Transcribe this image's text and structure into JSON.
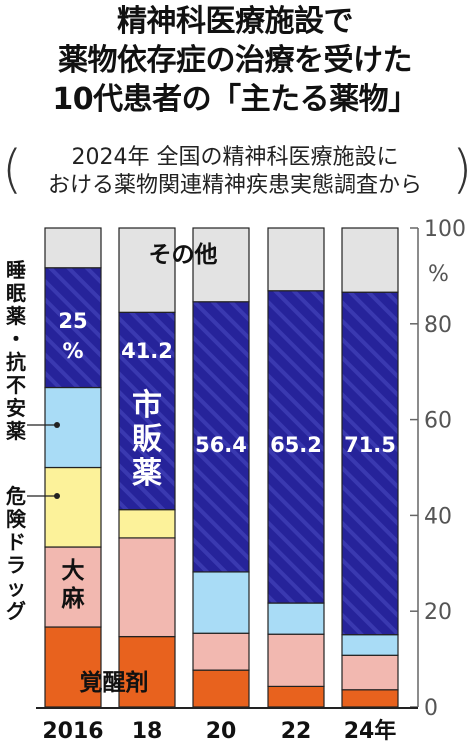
{
  "title": {
    "line1": "精神科医療施設で",
    "line2": "薬物依存症の治療を受けた",
    "line3": "10代患者の「主たる薬物」"
  },
  "subtitle": {
    "line1": "2024年 全国の精神科医療施設に",
    "line2": "おける薬物関連精神疾患実態調査から",
    "open_paren": "(",
    "close_paren": ")"
  },
  "chart_data": {
    "type": "bar",
    "stacked": true,
    "percent": true,
    "categories": [
      "2016",
      "18",
      "20",
      "22",
      "24年"
    ],
    "ylim": [
      0,
      100
    ],
    "yticks": [
      0,
      20,
      40,
      60,
      80,
      100
    ],
    "yunit": "%",
    "series": [
      {
        "name": "覚醒剤",
        "values": [
          16.7,
          14.7,
          7.7,
          4.3,
          3.6
        ],
        "color": "#e8621e"
      },
      {
        "name": "大麻",
        "values": [
          16.7,
          20.6,
          7.7,
          10.9,
          7.2
        ],
        "color": "#f2b8b0"
      },
      {
        "name": "危険ドラッグ",
        "values": [
          16.6,
          5.9,
          0,
          0,
          0
        ],
        "color": "#fcf29a"
      },
      {
        "name": "睡眠薬・抗不安薬",
        "values": [
          16.7,
          0,
          12.8,
          6.5,
          4.3
        ],
        "color": "#a9dcf6"
      },
      {
        "name": "市販薬",
        "values": [
          25,
          41.2,
          56.4,
          65.2,
          71.5
        ],
        "color": "#26239a"
      },
      {
        "name": "その他",
        "values": [
          8.3,
          17.6,
          15.4,
          13.1,
          13.4
        ],
        "color": "#e3e3e3"
      }
    ],
    "data_labels": [
      {
        "series": "市販薬",
        "category": "2016",
        "text": "25\n%"
      },
      {
        "series": "市販薬",
        "category": "18",
        "text": "41.2"
      },
      {
        "series": "市販薬",
        "category": "20",
        "text": "56.4"
      },
      {
        "series": "市販薬",
        "category": "22",
        "text": "65.2"
      },
      {
        "series": "市販薬",
        "category": "24年",
        "text": "71.5"
      }
    ],
    "in_chart_labels": {
      "other": "その他",
      "otc": "市販薬",
      "meth": "覚醒剤",
      "cannabis": "大麻"
    },
    "side_labels": {
      "sleep": "睡眠薬・抗不安薬",
      "danger": "危険ドラッグ"
    }
  }
}
